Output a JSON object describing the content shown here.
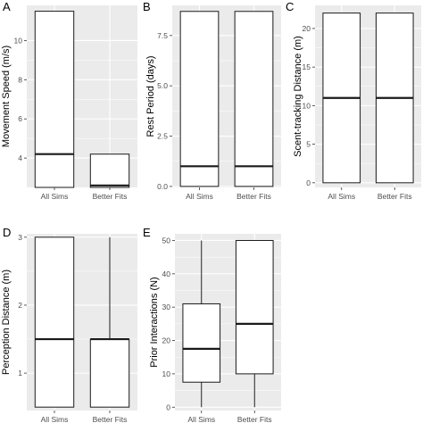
{
  "chart_data": [
    {
      "panel": "A",
      "type": "box",
      "ylabel": "Movement Speed (m/s)",
      "ylim": [
        2.5,
        11.8
      ],
      "yticks": [
        4,
        6,
        8,
        10
      ],
      "grid": true,
      "categories": [
        "All Sims",
        "Better Fits"
      ],
      "boxes": [
        {
          "q1": 2.5,
          "median": 4.2,
          "q3": 11.5
        },
        {
          "q1": 2.5,
          "median": 2.6,
          "q3": 4.2
        }
      ]
    },
    {
      "panel": "B",
      "type": "box",
      "ylabel": "Rest Period (days)",
      "ylim": [
        -0.05,
        9.0
      ],
      "yticks": [
        0.0,
        2.5,
        5.0,
        7.5
      ],
      "tick_labels": [
        "0.0",
        "2.5",
        "5.0",
        "7.5"
      ],
      "grid": true,
      "categories": [
        "All Sims",
        "Better Fits"
      ],
      "boxes": [
        {
          "q1": 0,
          "median": 1,
          "q3": 8.7
        },
        {
          "q1": 0,
          "median": 1,
          "q3": 8.7
        }
      ]
    },
    {
      "panel": "C",
      "type": "box",
      "ylabel": "Scent-tracking Distance (m)",
      "ylim": [
        -0.6,
        23.0
      ],
      "yticks": [
        0,
        5,
        10,
        15,
        20
      ],
      "grid": true,
      "categories": [
        "All Sims",
        "Better Fits"
      ],
      "boxes": [
        {
          "q1": 0,
          "median": 11,
          "q3": 22
        },
        {
          "q1": 0,
          "median": 11,
          "q3": 22
        }
      ]
    },
    {
      "panel": "D",
      "type": "box",
      "ylabel": "Perception Distance (m)",
      "ylim": [
        0.45,
        3.05
      ],
      "yticks": [
        1,
        2,
        3
      ],
      "grid": true,
      "categories": [
        "All Sims",
        "Better Fits"
      ],
      "boxes": [
        {
          "q1": 0.5,
          "median": 1.5,
          "q3": 3.0
        },
        {
          "q1": 0.5,
          "median": 1.5,
          "q3": 1.5,
          "whisker_high": 3.0
        }
      ]
    },
    {
      "panel": "E",
      "type": "box",
      "ylabel": "Prior Interactions (N)",
      "ylim": [
        -1,
        52
      ],
      "yticks": [
        0,
        10,
        20,
        30,
        40,
        50
      ],
      "grid": true,
      "categories": [
        "All Sims",
        "Better Fits"
      ],
      "boxes": [
        {
          "whisker_low": 0,
          "q1": 7.5,
          "median": 17.5,
          "q3": 31,
          "whisker_high": 50
        },
        {
          "whisker_low": 0,
          "q1": 10,
          "median": 25,
          "q3": 50
        }
      ]
    }
  ],
  "style": {
    "panel_background": "#ebebeb",
    "gridline_color": "#ffffff",
    "box_fill": "#ffffff",
    "box_stroke": "#1a1a1a"
  }
}
